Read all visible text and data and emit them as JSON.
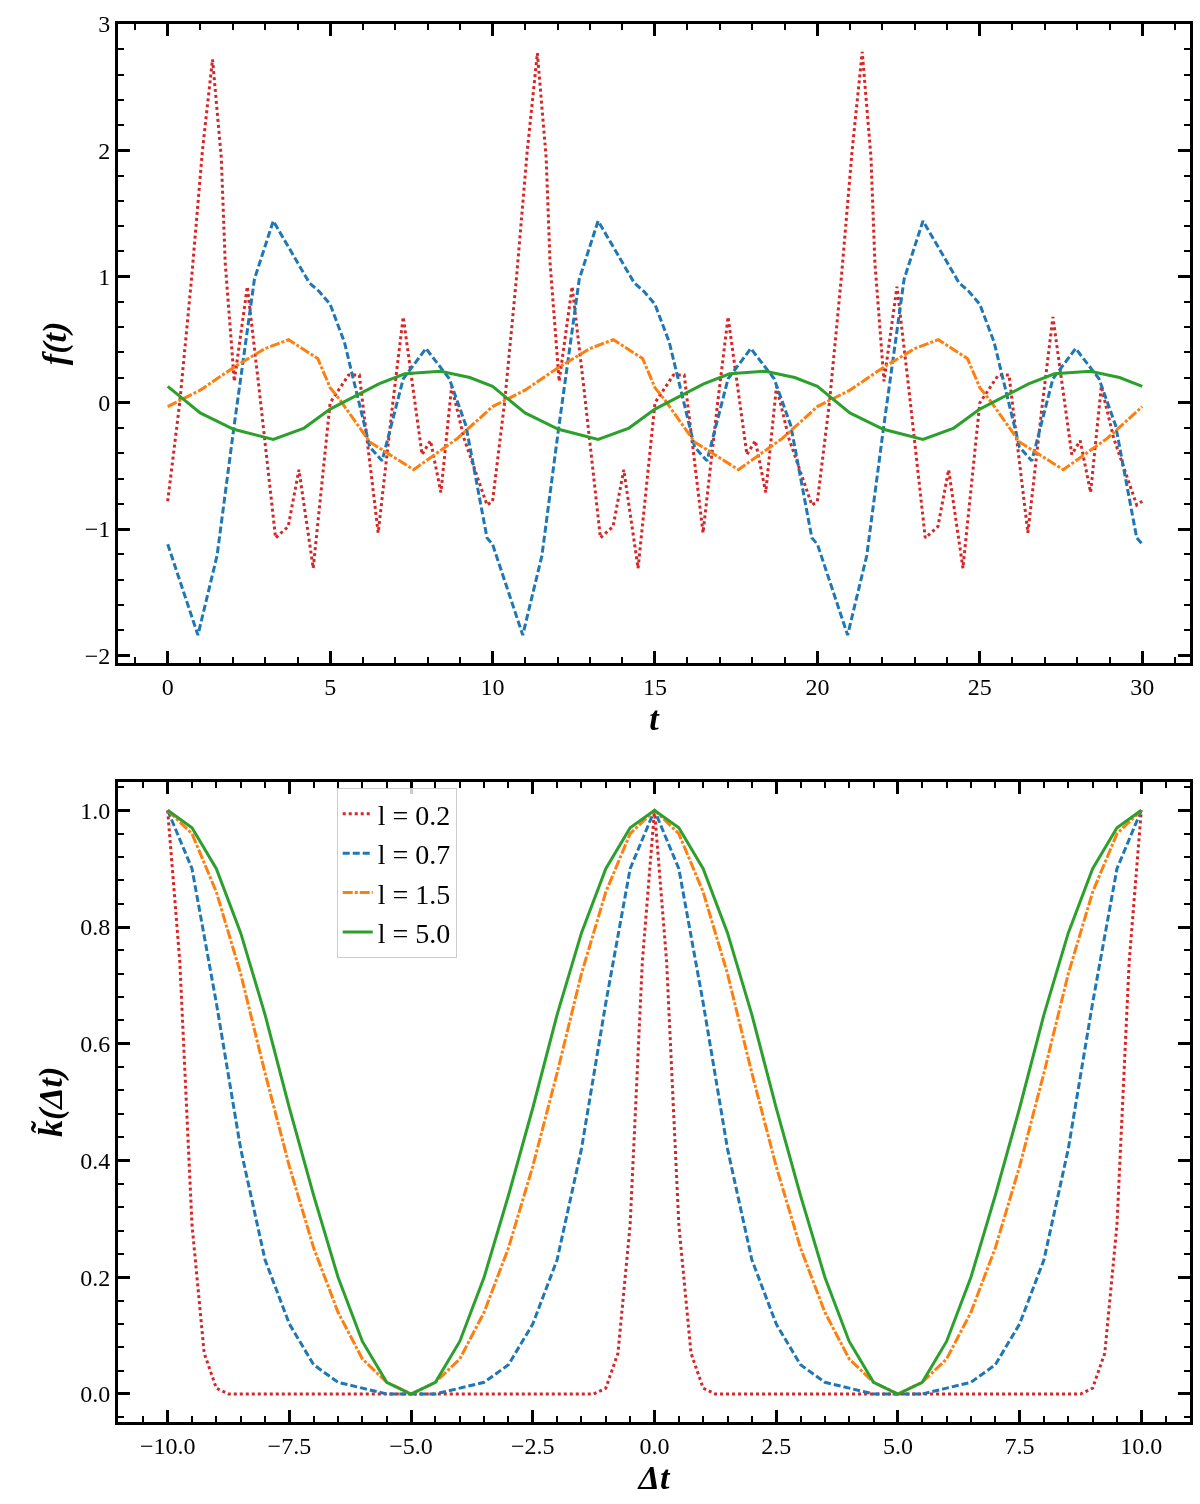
{
  "chart_data": [
    {
      "type": "line",
      "xlabel": "t",
      "ylabel": "f(t)",
      "xlim": [
        -1.53,
        31.47
      ],
      "ylim": [
        -2.06,
        3.0
      ],
      "xticks": [
        0,
        5,
        10,
        15,
        20,
        25,
        30
      ],
      "yticks": [
        {
          "value": -2,
          "label": "−2"
        },
        {
          "value": -1,
          "label": "−1"
        },
        0,
        1,
        2,
        3
      ],
      "series": [
        {
          "color": "#d62728",
          "line_style": "dotted",
          "x": [
            0,
            0.37,
            0.74,
            1.07,
            1.38,
            1.65,
            1.77,
            2.05,
            2.45,
            2.81,
            3.32,
            3.71,
            4.04,
            4.48,
            5,
            5.57,
            5.9,
            6.48,
            6.93,
            7.25,
            7.83,
            8.09,
            8.41,
            8.74,
            9.12,
            9.83,
            10,
            10.37,
            10.74,
            11.07,
            11.38,
            11.65,
            11.77,
            12.05,
            12.45,
            12.81,
            13.32,
            13.71,
            14.04,
            14.48,
            15,
            15.57,
            15.9,
            16.48,
            16.93,
            17.25,
            17.83,
            18.09,
            18.41,
            18.74,
            19.12,
            19.83,
            20,
            20.37,
            20.74,
            21.07,
            21.38,
            21.65,
            21.77,
            22.05,
            22.45,
            22.81,
            23.32,
            23.71,
            24.04,
            24.48,
            25,
            25.57,
            25.9,
            26.48,
            26.93,
            27.25,
            27.83,
            28.09,
            28.41,
            28.74,
            29.12,
            29.83,
            30
          ],
          "values": [
            -0.78,
            0,
            1.0,
            2.0,
            2.72,
            1.94,
            1.11,
            0.17,
            0.92,
            0.12,
            -1.07,
            -0.98,
            -0.53,
            -1.31,
            0,
            0.22,
            0.22,
            -1.03,
            0,
            0.68,
            -0.41,
            -0.3,
            -0.71,
            0.13,
            -0.28,
            -0.81,
            -0.78,
            0,
            1.0,
            2.0,
            2.77,
            1.94,
            1.11,
            0.17,
            0.92,
            0.12,
            -1.07,
            -0.98,
            -0.53,
            -1.31,
            0,
            0.22,
            0.22,
            -1.03,
            0,
            0.68,
            -0.41,
            -0.3,
            -0.71,
            0.13,
            -0.28,
            -0.81,
            -0.78,
            0,
            1.0,
            2.0,
            2.78,
            1.94,
            1.11,
            0.17,
            0.92,
            0.12,
            -1.07,
            -0.98,
            -0.53,
            -1.31,
            0,
            0.22,
            0.22,
            -1.03,
            0,
            0.68,
            -0.41,
            -0.3,
            -0.71,
            0.13,
            -0.28,
            -0.81,
            -0.78
          ]
        },
        {
          "color": "#1f77b4",
          "line_style": "dashed",
          "x": [
            0,
            0.93,
            1.52,
            2.03,
            2.67,
            3.25,
            3.84,
            4.36,
            4.67,
            5,
            5.44,
            6.22,
            6.6,
            7.25,
            7.95,
            8.67,
            9.18,
            9.83,
            10,
            10.93,
            11.52,
            12.03,
            12.67,
            13.25,
            13.84,
            14.36,
            14.67,
            15,
            15.44,
            16.22,
            16.6,
            17.25,
            17.95,
            18.67,
            19.18,
            19.83,
            20,
            20.93,
            21.52,
            22.03,
            22.67,
            23.25,
            23.84,
            24.36,
            24.67,
            25,
            25.44,
            26.22,
            26.6,
            27.25,
            27.95,
            28.67,
            29.18,
            29.83,
            30
          ],
          "values": [
            -1.12,
            -1.84,
            -1.21,
            -0.21,
            0.98,
            1.44,
            1.18,
            0.95,
            0.88,
            0.78,
            0.48,
            -0.35,
            -0.46,
            0.19,
            0.43,
            0.19,
            -0.18,
            -1.07,
            -1.12,
            -1.84,
            -1.21,
            -0.21,
            0.98,
            1.44,
            1.18,
            0.95,
            0.88,
            0.78,
            0.48,
            -0.35,
            -0.46,
            0.19,
            0.43,
            0.19,
            -0.18,
            -1.07,
            -1.12,
            -1.84,
            -1.21,
            -0.21,
            0.98,
            1.44,
            1.18,
            0.95,
            0.88,
            0.78,
            0.48,
            -0.35,
            -0.46,
            0.19,
            0.43,
            0.19,
            -0.18,
            -1.07,
            -1.12
          ]
        },
        {
          "color": "#ff7f0e",
          "line_style": "dashdot",
          "x": [
            0,
            1,
            2.03,
            3,
            3.72,
            4.62,
            5,
            5.31,
            6.22,
            7.57,
            8.93,
            10,
            11,
            12.03,
            13,
            13.72,
            14.62,
            15,
            15.31,
            16.22,
            17.57,
            18.93,
            20,
            21,
            22.03,
            23,
            23.72,
            24.62,
            25,
            25.31,
            26.22,
            27.57,
            28.93,
            30
          ],
          "values": [
            -0.03,
            0.1,
            0.28,
            0.43,
            0.5,
            0.35,
            0.12,
            0.02,
            -0.31,
            -0.53,
            -0.28,
            -0.03,
            0.1,
            0.28,
            0.43,
            0.5,
            0.35,
            0.12,
            0.02,
            -0.31,
            -0.53,
            -0.28,
            -0.03,
            0.1,
            0.28,
            0.43,
            0.5,
            0.35,
            0.12,
            0.02,
            -0.31,
            -0.53,
            -0.28,
            -0.03
          ]
        },
        {
          "color": "#2ca02c",
          "line_style": "solid",
          "x": [
            0,
            1,
            2.03,
            3.25,
            4.2,
            5,
            6.5,
            7.3,
            8.4,
            9.3,
            10,
            11,
            12.03,
            13.25,
            14.2,
            15,
            16.5,
            17.3,
            18.4,
            19.3,
            20,
            21,
            22.03,
            23.25,
            24.2,
            25,
            26.5,
            27.3,
            28.4,
            29.3,
            30
          ],
          "values": [
            0.13,
            -0.08,
            -0.21,
            -0.29,
            -0.2,
            -0.05,
            0.15,
            0.23,
            0.25,
            0.2,
            0.13,
            -0.08,
            -0.21,
            -0.29,
            -0.2,
            -0.05,
            0.15,
            0.23,
            0.25,
            0.2,
            0.13,
            -0.08,
            -0.21,
            -0.29,
            -0.2,
            -0.05,
            0.15,
            0.23,
            0.25,
            0.2,
            0.13
          ]
        }
      ]
    },
    {
      "type": "line",
      "xlabel": "Δt",
      "ylabel": "k̃(Δt)",
      "xlim": [
        -11.02,
        11.0
      ],
      "ylim": [
        -0.048,
        1.049
      ],
      "legend": "top",
      "xticks": [
        {
          "value": -10,
          "label": "−10.0"
        },
        {
          "value": -7.5,
          "label": "−7.5"
        },
        {
          "value": -5,
          "label": "−5.0"
        },
        {
          "value": -2.5,
          "label": "−2.5"
        },
        {
          "value": 0,
          "label": "0.0"
        },
        {
          "value": 2.5,
          "label": "2.5"
        },
        {
          "value": 5,
          "label": "5.0"
        },
        {
          "value": 7.5,
          "label": "7.5"
        },
        {
          "value": 10,
          "label": "10.0"
        }
      ],
      "yticks": [
        {
          "value": 0,
          "label": "0.0"
        },
        {
          "value": 0.2,
          "label": "0.2"
        },
        {
          "value": 0.4,
          "label": "0.4"
        },
        {
          "value": 0.6,
          "label": "0.6"
        },
        {
          "value": 0.8,
          "label": "0.8"
        },
        {
          "value": 1,
          "label": "1.0"
        }
      ],
      "x": [
        -10,
        -9.5,
        -9,
        -8.5,
        -8,
        -7.5,
        -7,
        -6.5,
        -6,
        -5.5,
        -5,
        -4.5,
        -4,
        -3.5,
        -3,
        -2.5,
        -2,
        -1.5,
        -1,
        -0.5,
        0,
        0.5,
        1,
        1.5,
        2,
        2.5,
        3,
        3.5,
        4,
        4.5,
        5,
        5.5,
        6,
        6.5,
        7,
        7.5,
        8,
        8.5,
        9,
        9.5,
        10
      ],
      "series": [
        {
          "name": "l = 0.2",
          "color": "#d62728",
          "line_style": "dotted",
          "x": [
            -10,
            -9.75,
            -9.5,
            -9.25,
            -9,
            -8.75,
            -5,
            -1.25,
            -1,
            -0.75,
            -0.5,
            -0.25,
            0,
            0.25,
            0.5,
            0.75,
            1,
            1.25,
            5,
            8.75,
            9,
            9.25,
            9.5,
            9.75,
            10
          ],
          "values": [
            1,
            0.74,
            0.29,
            0.07,
            0.01,
            0,
            0,
            0,
            0.01,
            0.07,
            0.29,
            0.74,
            1,
            0.74,
            0.29,
            0.07,
            0.01,
            0,
            0,
            0,
            0.01,
            0.07,
            0.29,
            0.74,
            1
          ]
        },
        {
          "name": "l = 0.7",
          "color": "#1f77b4",
          "line_style": "dashed",
          "values": [
            1,
            0.9,
            0.67,
            0.42,
            0.23,
            0.12,
            0.05,
            0.02,
            0.01,
            0,
            0,
            0,
            0.01,
            0.02,
            0.05,
            0.12,
            0.23,
            0.42,
            0.67,
            0.9,
            1,
            0.9,
            0.67,
            0.42,
            0.23,
            0.12,
            0.05,
            0.02,
            0.01,
            0,
            0,
            0,
            0.01,
            0.02,
            0.05,
            0.12,
            0.23,
            0.42,
            0.67,
            0.9,
            1
          ]
        },
        {
          "name": "l = 1.5",
          "color": "#ff7f0e",
          "line_style": "dashdot",
          "values": [
            1,
            0.96,
            0.86,
            0.72,
            0.55,
            0.39,
            0.25,
            0.14,
            0.06,
            0.02,
            0,
            0.02,
            0.06,
            0.14,
            0.25,
            0.39,
            0.55,
            0.72,
            0.86,
            0.96,
            1,
            0.96,
            0.86,
            0.72,
            0.55,
            0.39,
            0.25,
            0.14,
            0.06,
            0.02,
            0,
            0.02,
            0.06,
            0.14,
            0.25,
            0.39,
            0.55,
            0.72,
            0.86,
            0.96,
            1
          ]
        },
        {
          "name": "l = 5.0",
          "color": "#2ca02c",
          "line_style": "solid",
          "values": [
            1,
            0.97,
            0.9,
            0.79,
            0.65,
            0.49,
            0.34,
            0.2,
            0.09,
            0.02,
            0,
            0.02,
            0.09,
            0.2,
            0.34,
            0.49,
            0.65,
            0.79,
            0.9,
            0.97,
            1,
            0.97,
            0.9,
            0.79,
            0.65,
            0.49,
            0.34,
            0.2,
            0.09,
            0.02,
            0,
            0.02,
            0.09,
            0.2,
            0.34,
            0.49,
            0.65,
            0.79,
            0.9,
            0.97,
            1
          ]
        }
      ]
    }
  ]
}
